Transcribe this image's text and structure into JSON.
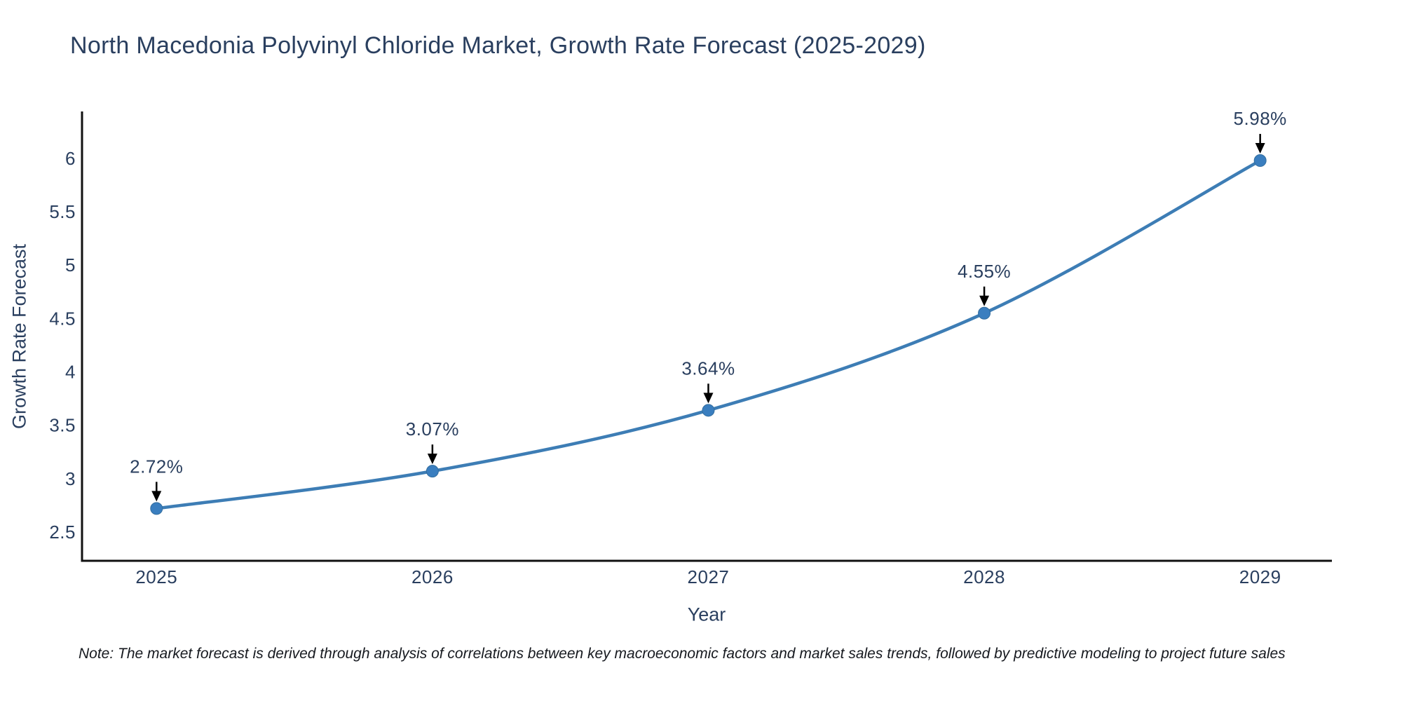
{
  "note": "Note: The market forecast is derived through analysis of correlations between key macroeconomic factors and market sales trends, followed by predictive modeling to project future sales",
  "chart_data": {
    "type": "line",
    "title": "North Macedonia Polyvinyl Chloride Market, Growth Rate Forecast (2025-2029)",
    "xlabel": "Year",
    "ylabel": "Growth Rate Forecast",
    "x": [
      2025,
      2026,
      2027,
      2028,
      2029
    ],
    "values": [
      2.72,
      3.07,
      3.64,
      4.55,
      5.98
    ],
    "point_labels": [
      "2.72%",
      "3.07%",
      "3.64%",
      "4.55%",
      "5.98%"
    ],
    "xticks": [
      "2025",
      "2026",
      "2027",
      "2028",
      "2029"
    ],
    "xtick_values": [
      2025,
      2026,
      2027,
      2028,
      2029
    ],
    "yticks": [
      "2.5",
      "3",
      "3.5",
      "4",
      "4.5",
      "5",
      "5.5",
      "6"
    ],
    "ytick_values": [
      2.5,
      3,
      3.5,
      4,
      4.5,
      5,
      5.5,
      6
    ],
    "xlim": [
      2024.73,
      2029.26
    ],
    "ylim": [
      2.23,
      6.44
    ],
    "grid": false,
    "legend": "none",
    "line_shape": "spline",
    "line_color": "#3d7db5",
    "marker_color": "#3a7ebf",
    "marker_edge_color": "#336e9f",
    "arrow_color": "#000000",
    "text_color": "#2a3f5f",
    "axis_color": "#111111"
  }
}
